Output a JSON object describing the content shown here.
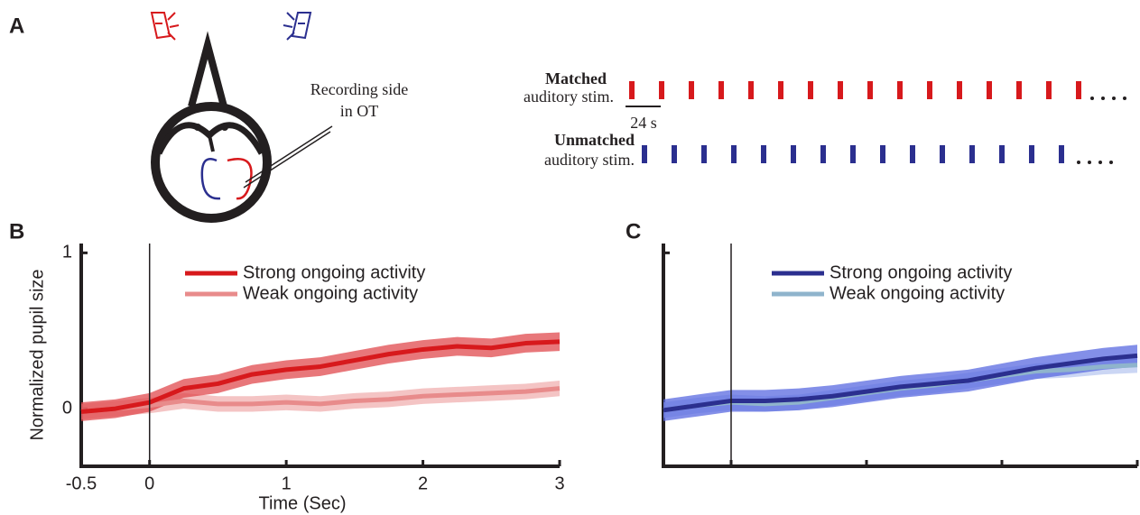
{
  "diagram": {
    "panel_label": "A",
    "recording_label": [
      "Recording side",
      "in OT"
    ],
    "matched": {
      "bold": "Matched",
      "text": "auditory stim."
    },
    "scale_label": "24 s",
    "unmatched": {
      "bold": "Unmatched",
      "text": "auditory stim."
    }
  },
  "chart_data": [
    {
      "type": "line",
      "panel": "B",
      "ylabel": "Normalized pupil size",
      "xlabel": "Time (Sec)",
      "x": [
        -0.5,
        -0.25,
        0,
        0.25,
        0.5,
        0.75,
        1,
        1.25,
        1.5,
        1.75,
        2,
        2.25,
        2.5,
        2.75,
        3
      ],
      "xlim": [
        -0.5,
        3
      ],
      "ylim": [
        -0.37,
        1.06
      ],
      "xticks": [
        {
          "value": -0.5,
          "label": "-0.5"
        },
        0,
        1,
        2,
        3
      ],
      "yticks": [
        0,
        1
      ],
      "tick_labels": true,
      "onset_line": 0,
      "series": [
        {
          "name": "Strong ongoing activity",
          "color": "#d7191c",
          "band_color": "#e04a4d",
          "error": 0.06,
          "values": [
            -0.02,
            0.0,
            0.04,
            0.13,
            0.16,
            0.22,
            0.25,
            0.27,
            0.31,
            0.35,
            0.38,
            0.4,
            0.39,
            0.42,
            0.43
          ]
        },
        {
          "name": "Weak ongoing activity",
          "color": "#e88b8b",
          "band_color": "#f0b0b0",
          "error": 0.05,
          "values": [
            -0.02,
            0.0,
            0.02,
            0.05,
            0.03,
            0.03,
            0.04,
            0.03,
            0.05,
            0.06,
            0.08,
            0.09,
            0.1,
            0.11,
            0.13
          ]
        }
      ]
    },
    {
      "type": "line",
      "panel": "C",
      "x": [
        -0.5,
        -0.25,
        0,
        0.25,
        0.5,
        0.75,
        1,
        1.25,
        1.5,
        1.75,
        2,
        2.25,
        2.5,
        2.75,
        3
      ],
      "xlim": [
        -0.5,
        3
      ],
      "ylim": [
        -0.37,
        1.06
      ],
      "xticks": [
        -0.5,
        0,
        1,
        2,
        3
      ],
      "yticks": [
        0,
        1
      ],
      "tick_labels": false,
      "onset_line": 0,
      "series": [
        {
          "name": "Strong ongoing activity",
          "color": "#2b2f8f",
          "band_color": "#5a6ae0",
          "error": 0.07,
          "values": [
            -0.01,
            0.02,
            0.05,
            0.05,
            0.06,
            0.08,
            0.11,
            0.14,
            0.16,
            0.18,
            0.22,
            0.26,
            0.29,
            0.32,
            0.34
          ]
        },
        {
          "name": "Weak ongoing activity",
          "color": "#8fb4cc",
          "band_color": "#b9c8f0",
          "error": 0.05,
          "values": [
            -0.01,
            0.02,
            0.04,
            0.03,
            0.04,
            0.07,
            0.1,
            0.13,
            0.15,
            0.18,
            0.21,
            0.24,
            0.25,
            0.27,
            0.28
          ]
        }
      ]
    }
  ]
}
